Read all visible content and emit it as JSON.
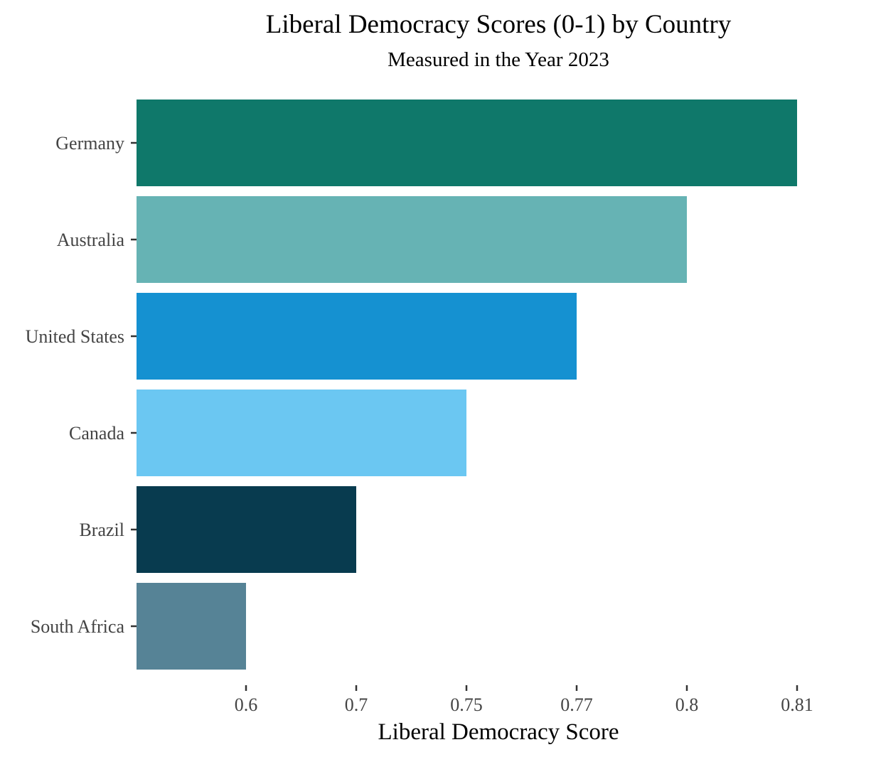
{
  "chart_data": {
    "type": "bar",
    "orientation": "horizontal",
    "title": "Liberal Democracy Scores (0-1) by Country",
    "subtitle": "Measured in the Year 2023",
    "xlabel": "Liberal Democracy Score",
    "ylabel": "",
    "categories": [
      "Germany",
      "Australia",
      "United States",
      "Canada",
      "Brazil",
      "South Africa"
    ],
    "values": [
      0.81,
      0.8,
      0.77,
      0.75,
      0.7,
      0.6
    ],
    "colors": [
      "#0f786a",
      "#66b3b4",
      "#1591d1",
      "#6bc7f2",
      "#083b4f",
      "#568396"
    ],
    "x_ticks": [
      0.6,
      0.7,
      0.75,
      0.77,
      0.8,
      0.81
    ],
    "x_tick_labels": [
      "0.6",
      "0.7",
      "0.75",
      "0.77",
      "0.8",
      "0.81"
    ],
    "grid": false,
    "legend": "none"
  }
}
